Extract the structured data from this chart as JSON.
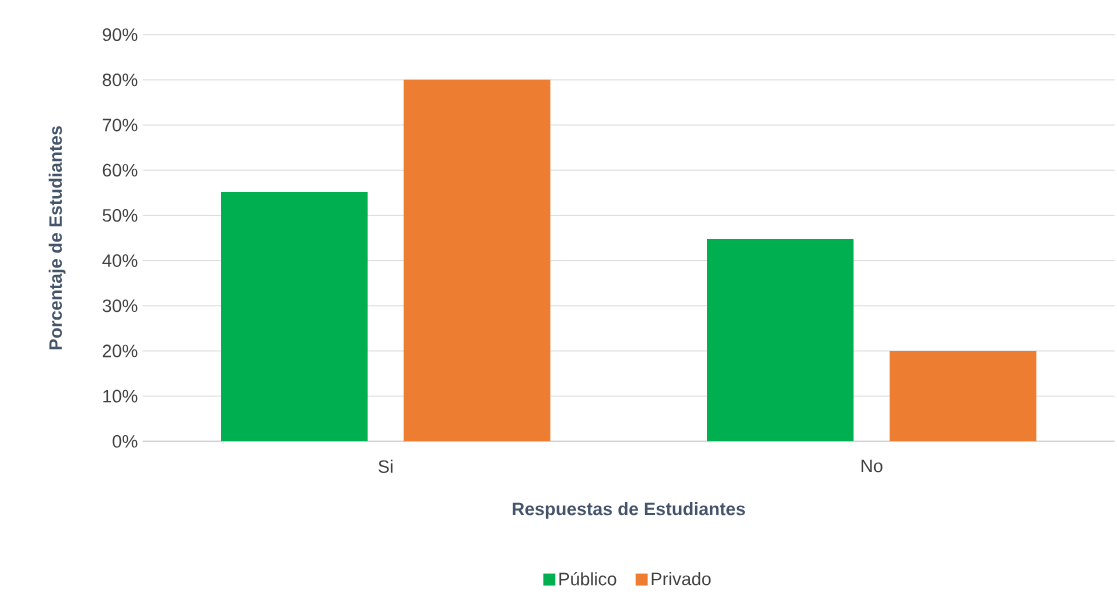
{
  "chart_data": {
    "type": "bar",
    "xlabel": "Respuestas de Estudiantes",
    "ylabel": "Porcentaje de Estudiantes",
    "categories": [
      "Si",
      "No"
    ],
    "series": [
      {
        "name": "Público",
        "color": "#00b050",
        "values": [
          55.2,
          44.8
        ]
      },
      {
        "name": "Privado",
        "color": "#ed7d31",
        "values": [
          80,
          20
        ]
      }
    ],
    "ylim": [
      0,
      90
    ],
    "yticks": [
      {
        "value": 0,
        "label": "0%"
      },
      {
        "value": 10,
        "label": "10%"
      },
      {
        "value": 20,
        "label": "20%"
      },
      {
        "value": 30,
        "label": "30%"
      },
      {
        "value": 40,
        "label": "40%"
      },
      {
        "value": 50,
        "label": "50%"
      },
      {
        "value": 60,
        "label": "60%"
      },
      {
        "value": 70,
        "label": "70%"
      },
      {
        "value": 80,
        "label": "80%"
      },
      {
        "value": 90,
        "label": "90%"
      }
    ],
    "grid": "y",
    "legend": "bottom"
  }
}
